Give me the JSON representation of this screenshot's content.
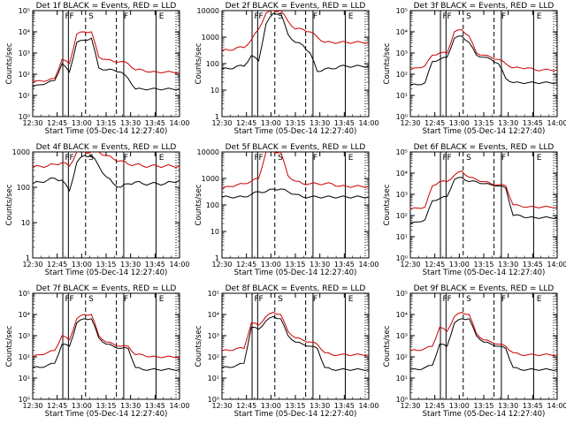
{
  "figure": {
    "x_tick_labels": [
      "12:30",
      "12:45",
      "13:00",
      "13:15",
      "13:30",
      "13:45",
      "14:00"
    ],
    "x_axis_label": "Start Time (05-Dec-14 12:27:40)",
    "y_axis_label": "Counts/sec",
    "region_letters": [
      "F",
      "F",
      "S",
      "F",
      "E"
    ]
  },
  "chart_data": [
    {
      "type": "line",
      "title": "Det 1f BLACK = Events, RED = LLD",
      "x": [
        0,
        5,
        10,
        15,
        20,
        25,
        30,
        35,
        40,
        45,
        50,
        55,
        60,
        65,
        70,
        75,
        80,
        85,
        90,
        95,
        100
      ],
      "ylim_exp": [
        0,
        5
      ],
      "ytick_labels": [
        "10⁰",
        "10¹",
        "10²",
        "10³",
        "10⁴",
        "10⁵"
      ],
      "series": [
        {
          "name": "Events",
          "color": "#000000",
          "values": [
            1.4,
            1.5,
            1.6,
            1.7,
            2.5,
            2.1,
            3.5,
            3.6,
            3.7,
            2.3,
            2.2,
            2.2,
            2.1,
            1.8,
            1.3,
            1.3,
            1.3,
            1.3,
            1.3,
            1.3,
            1.3
          ]
        },
        {
          "name": "LLD",
          "color": "#cc0000",
          "values": [
            1.6,
            1.7,
            1.7,
            1.8,
            2.7,
            2.5,
            3.9,
            4.0,
            4.0,
            2.8,
            2.7,
            2.6,
            2.6,
            2.5,
            2.2,
            2.2,
            2.1,
            2.1,
            2.1,
            2.1,
            2.1
          ]
        }
      ]
    },
    {
      "type": "line",
      "title": "Det 2f BLACK = Events, RED = LLD",
      "x": [
        0,
        5,
        10,
        15,
        20,
        25,
        30,
        35,
        40,
        45,
        50,
        55,
        60,
        65,
        70,
        75,
        80,
        85,
        90,
        95,
        100
      ],
      "ylim_exp": [
        0,
        4
      ],
      "ytick_labels": [
        "1",
        "10",
        "100",
        "1000",
        "10000"
      ],
      "series": [
        {
          "name": "Events",
          "color": "#000000",
          "values": [
            1.8,
            1.8,
            1.9,
            1.9,
            2.3,
            2.1,
            3.5,
            3.9,
            3.9,
            3.1,
            2.8,
            2.7,
            2.4,
            1.7,
            1.8,
            1.8,
            1.9,
            1.9,
            1.9,
            1.9,
            1.9
          ]
        },
        {
          "name": "LLD",
          "color": "#cc0000",
          "values": [
            2.5,
            2.5,
            2.6,
            2.6,
            2.9,
            3.3,
            3.9,
            4.0,
            4.0,
            3.6,
            3.3,
            3.3,
            3.2,
            3.0,
            2.8,
            2.8,
            2.8,
            2.8,
            2.8,
            2.8,
            2.8
          ]
        }
      ]
    },
    {
      "type": "line",
      "title": "Det 3f BLACK = Events, RED = LLD",
      "x": [
        0,
        5,
        10,
        15,
        20,
        25,
        30,
        35,
        40,
        45,
        50,
        55,
        60,
        65,
        70,
        75,
        80,
        85,
        90,
        95,
        100
      ],
      "ylim_exp": [
        0,
        5
      ],
      "ytick_labels": [
        "10⁰",
        "10¹",
        "10²",
        "10³",
        "10⁴",
        "10⁵"
      ],
      "series": [
        {
          "name": "Events",
          "color": "#000000",
          "values": [
            1.5,
            1.5,
            1.6,
            2.6,
            2.7,
            2.8,
            3.7,
            3.8,
            3.5,
            2.9,
            2.8,
            2.7,
            2.5,
            1.8,
            1.6,
            1.6,
            1.6,
            1.6,
            1.6,
            1.6,
            1.6
          ]
        },
        {
          "name": "LLD",
          "color": "#cc0000",
          "values": [
            2.2,
            2.3,
            2.4,
            2.9,
            3.0,
            3.0,
            4.0,
            4.1,
            3.8,
            3.0,
            2.9,
            2.8,
            2.7,
            2.5,
            2.3,
            2.3,
            2.3,
            2.2,
            2.2,
            2.2,
            2.2
          ]
        }
      ]
    },
    {
      "type": "line",
      "title": "Det 4f BLACK = Events, RED = LLD",
      "x": [
        0,
        5,
        10,
        15,
        20,
        25,
        30,
        35,
        40,
        45,
        50,
        55,
        60,
        65,
        70,
        75,
        80,
        85,
        90,
        95,
        100
      ],
      "ylim_exp": [
        0,
        3
      ],
      "ytick_labels": [
        "1",
        "10",
        "100",
        "1000"
      ],
      "series": [
        {
          "name": "Events",
          "color": "#000000",
          "values": [
            2.1,
            2.15,
            2.2,
            2.25,
            2.2,
            1.9,
            2.7,
            2.9,
            2.9,
            2.6,
            2.3,
            2.1,
            2.0,
            2.1,
            2.15,
            2.1,
            2.1,
            2.1,
            2.1,
            2.15,
            2.2
          ]
        },
        {
          "name": "LLD",
          "color": "#cc0000",
          "values": [
            2.55,
            2.6,
            2.6,
            2.65,
            2.7,
            2.6,
            3.0,
            3.0,
            3.0,
            3.0,
            2.9,
            2.8,
            2.75,
            2.65,
            2.65,
            2.6,
            2.6,
            2.6,
            2.6,
            2.6,
            2.6
          ]
        }
      ]
    },
    {
      "type": "line",
      "title": "Det 5f BLACK = Events, RED = LLD",
      "x": [
        0,
        5,
        10,
        15,
        20,
        25,
        30,
        35,
        40,
        45,
        50,
        55,
        60,
        65,
        70,
        75,
        80,
        85,
        90,
        95,
        100
      ],
      "ylim_exp": [
        0,
        4
      ],
      "ytick_labels": [
        "1",
        "10",
        "100",
        "1000",
        "10000"
      ],
      "series": [
        {
          "name": "Events",
          "color": "#000000",
          "values": [
            2.3,
            2.3,
            2.3,
            2.3,
            2.4,
            2.5,
            2.5,
            2.6,
            2.6,
            2.5,
            2.4,
            2.3,
            2.3,
            2.3,
            2.3,
            2.3,
            2.3,
            2.3,
            2.3,
            2.3,
            2.3
          ]
        },
        {
          "name": "LLD",
          "color": "#cc0000",
          "values": [
            2.6,
            2.7,
            2.75,
            2.8,
            2.9,
            3.0,
            4.0,
            4.0,
            4.0,
            3.1,
            2.9,
            2.8,
            2.8,
            2.8,
            2.8,
            2.8,
            2.7,
            2.7,
            2.7,
            2.7,
            2.7
          ]
        }
      ]
    },
    {
      "type": "line",
      "title": "Det 6f BLACK = Events, RED = LLD",
      "x": [
        0,
        5,
        10,
        15,
        20,
        25,
        30,
        35,
        40,
        45,
        50,
        55,
        60,
        65,
        70,
        75,
        80,
        85,
        90,
        95,
        100
      ],
      "ylim_exp": [
        0,
        5
      ],
      "ytick_labels": [
        "10⁰",
        "10¹",
        "10²",
        "10³",
        "10⁴",
        "10⁵"
      ],
      "series": [
        {
          "name": "Events",
          "color": "#000000",
          "values": [
            1.6,
            1.7,
            1.8,
            2.7,
            2.8,
            2.9,
            3.7,
            3.8,
            3.6,
            3.6,
            3.5,
            3.45,
            3.4,
            3.3,
            2.0,
            2.0,
            1.9,
            1.9,
            1.9,
            1.9,
            1.9
          ]
        },
        {
          "name": "LLD",
          "color": "#cc0000",
          "values": [
            2.3,
            2.35,
            2.4,
            3.4,
            3.6,
            3.6,
            3.9,
            4.1,
            3.8,
            3.7,
            3.6,
            3.5,
            3.45,
            3.4,
            2.5,
            2.45,
            2.4,
            2.4,
            2.4,
            2.4,
            2.4
          ]
        }
      ]
    },
    {
      "type": "line",
      "title": "Det 7f BLACK = Events, RED = LLD",
      "x": [
        0,
        5,
        10,
        15,
        20,
        25,
        30,
        35,
        40,
        45,
        50,
        55,
        60,
        65,
        70,
        75,
        80,
        85,
        90,
        95,
        100
      ],
      "ylim_exp": [
        0,
        5
      ],
      "ytick_labels": [
        "10⁰",
        "10¹",
        "10²",
        "10³",
        "10⁴",
        "10⁵"
      ],
      "series": [
        {
          "name": "Events",
          "color": "#000000",
          "values": [
            1.5,
            1.5,
            1.6,
            1.7,
            2.6,
            2.5,
            3.6,
            3.8,
            3.8,
            2.9,
            2.6,
            2.5,
            2.4,
            2.4,
            1.5,
            1.4,
            1.4,
            1.4,
            1.4,
            1.4,
            1.4
          ]
        },
        {
          "name": "LLD",
          "color": "#cc0000",
          "values": [
            2.0,
            2.1,
            2.2,
            2.3,
            3.0,
            2.8,
            3.8,
            4.0,
            4.0,
            3.0,
            2.7,
            2.6,
            2.5,
            2.5,
            2.1,
            2.1,
            2.0,
            2.0,
            2.0,
            2.0,
            2.0
          ]
        }
      ]
    },
    {
      "type": "line",
      "title": "Det 8f BLACK = Events, RED = LLD",
      "x": [
        0,
        5,
        10,
        15,
        20,
        25,
        30,
        35,
        40,
        45,
        50,
        55,
        60,
        65,
        70,
        75,
        80,
        85,
        90,
        95,
        100
      ],
      "ylim_exp": [
        0,
        5
      ],
      "ytick_labels": [
        "10⁰",
        "10¹",
        "10²",
        "10³",
        "10⁴",
        "10⁵"
      ],
      "series": [
        {
          "name": "Events",
          "color": "#000000",
          "values": [
            1.5,
            1.5,
            1.6,
            1.7,
            3.4,
            3.3,
            3.7,
            3.9,
            3.8,
            3.0,
            2.7,
            2.6,
            2.5,
            2.4,
            1.5,
            1.4,
            1.4,
            1.4,
            1.4,
            1.4,
            1.4
          ]
        },
        {
          "name": "LLD",
          "color": "#cc0000",
          "values": [
            2.3,
            2.3,
            2.4,
            2.4,
            3.6,
            3.5,
            3.9,
            4.1,
            4.0,
            3.2,
            2.9,
            2.8,
            2.7,
            2.6,
            2.2,
            2.1,
            2.1,
            2.1,
            2.1,
            2.1,
            2.1
          ]
        }
      ]
    },
    {
      "type": "line",
      "title": "Det 9f BLACK = Events, RED = LLD",
      "x": [
        0,
        5,
        10,
        15,
        20,
        25,
        30,
        35,
        40,
        45,
        50,
        55,
        60,
        65,
        70,
        75,
        80,
        85,
        90,
        95,
        100
      ],
      "ylim_exp": [
        0,
        5
      ],
      "ytick_labels": [
        "10⁰",
        "10¹",
        "10²",
        "10³",
        "10⁴",
        "10⁵"
      ],
      "series": [
        {
          "name": "Events",
          "color": "#000000",
          "values": [
            1.4,
            1.4,
            1.5,
            1.6,
            2.6,
            2.5,
            3.6,
            3.8,
            3.8,
            3.0,
            2.7,
            2.6,
            2.5,
            2.4,
            1.5,
            1.4,
            1.4,
            1.4,
            1.4,
            1.4,
            1.4
          ]
        },
        {
          "name": "LLD",
          "color": "#cc0000",
          "values": [
            2.3,
            2.3,
            2.4,
            2.5,
            3.4,
            3.2,
            3.9,
            4.1,
            4.0,
            3.1,
            2.8,
            2.7,
            2.6,
            2.5,
            2.2,
            2.1,
            2.1,
            2.1,
            2.1,
            2.1,
            2.1
          ]
        }
      ]
    }
  ]
}
